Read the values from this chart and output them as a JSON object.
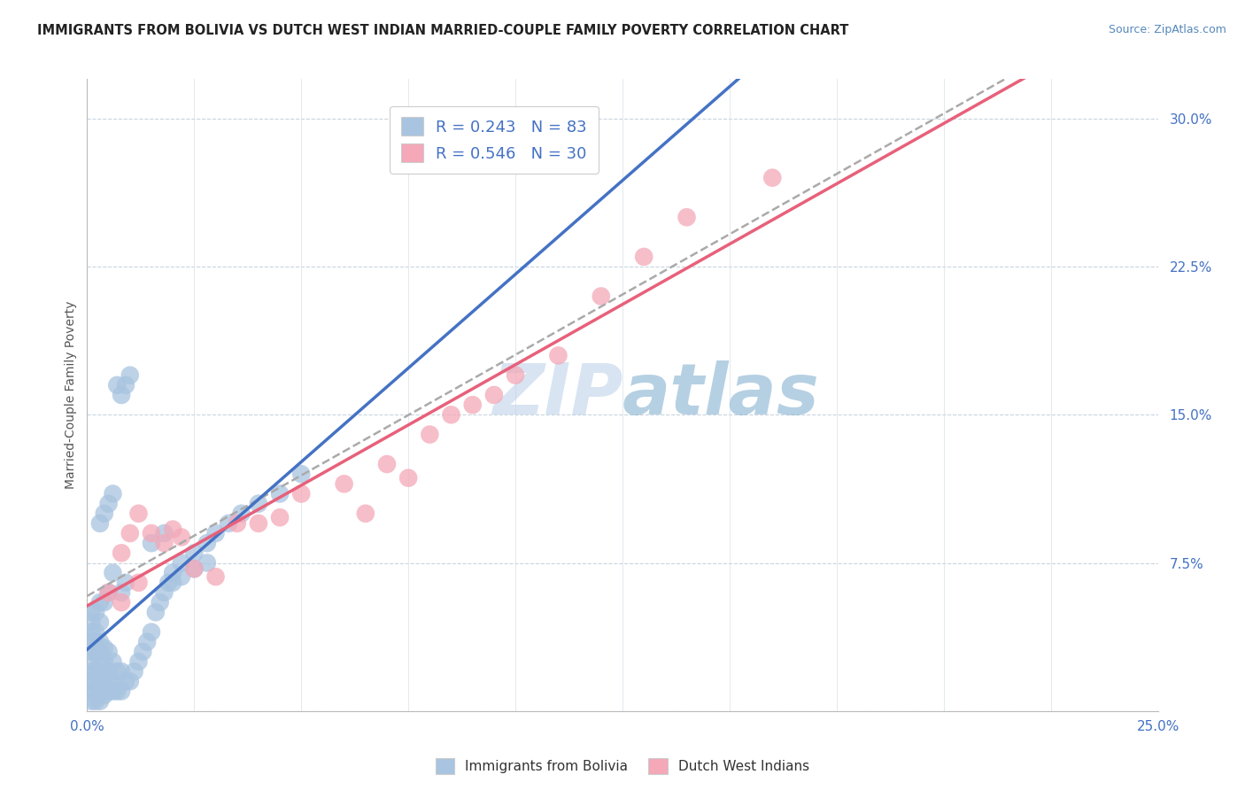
{
  "title": "IMMIGRANTS FROM BOLIVIA VS DUTCH WEST INDIAN MARRIED-COUPLE FAMILY POVERTY CORRELATION CHART",
  "source": "Source: ZipAtlas.com",
  "ylabel": "Married-Couple Family Poverty",
  "xlim": [
    0.0,
    0.25
  ],
  "ylim": [
    0.0,
    0.32
  ],
  "xticks": [
    0.0,
    0.025,
    0.05,
    0.075,
    0.1,
    0.125,
    0.15,
    0.175,
    0.2,
    0.225,
    0.25
  ],
  "ytick_positions": [
    0.0,
    0.075,
    0.15,
    0.225,
    0.3
  ],
  "yticklabels": [
    "",
    "7.5%",
    "15.0%",
    "22.5%",
    "30.0%"
  ],
  "bolivia_R": 0.243,
  "bolivia_N": 83,
  "dutch_R": 0.546,
  "dutch_N": 30,
  "bolivia_color": "#a8c4e0",
  "dutch_color": "#f4a8b8",
  "bolivia_line_color": "#4472c4",
  "dutch_line_color": "#e8607a",
  "watermark": "ZIPatlas",
  "watermark_color_zip": "#b8cfe8",
  "watermark_color_atlas": "#7aabcc",
  "bolivia_x": [
    0.001,
    0.001,
    0.001,
    0.001,
    0.001,
    0.001,
    0.001,
    0.001,
    0.001,
    0.001,
    0.002,
    0.002,
    0.002,
    0.002,
    0.002,
    0.002,
    0.002,
    0.002,
    0.003,
    0.003,
    0.003,
    0.003,
    0.003,
    0.003,
    0.003,
    0.003,
    0.003,
    0.004,
    0.004,
    0.004,
    0.004,
    0.004,
    0.004,
    0.005,
    0.005,
    0.005,
    0.005,
    0.005,
    0.006,
    0.006,
    0.006,
    0.006,
    0.007,
    0.007,
    0.007,
    0.008,
    0.008,
    0.008,
    0.009,
    0.009,
    0.01,
    0.01,
    0.011,
    0.012,
    0.013,
    0.014,
    0.015,
    0.016,
    0.017,
    0.018,
    0.019,
    0.02,
    0.022,
    0.025,
    0.028,
    0.03,
    0.033,
    0.036,
    0.04,
    0.045,
    0.05,
    0.003,
    0.004,
    0.005,
    0.006,
    0.02,
    0.022,
    0.025,
    0.028,
    0.015,
    0.018,
    0.008,
    0.009
  ],
  "bolivia_y": [
    0.005,
    0.01,
    0.015,
    0.02,
    0.025,
    0.03,
    0.035,
    0.04,
    0.045,
    0.05,
    0.005,
    0.01,
    0.015,
    0.02,
    0.03,
    0.035,
    0.04,
    0.05,
    0.005,
    0.01,
    0.015,
    0.02,
    0.025,
    0.03,
    0.035,
    0.045,
    0.055,
    0.008,
    0.012,
    0.018,
    0.025,
    0.032,
    0.055,
    0.01,
    0.015,
    0.02,
    0.03,
    0.06,
    0.01,
    0.015,
    0.025,
    0.07,
    0.01,
    0.02,
    0.165,
    0.01,
    0.02,
    0.16,
    0.015,
    0.165,
    0.015,
    0.17,
    0.02,
    0.025,
    0.03,
    0.035,
    0.04,
    0.05,
    0.055,
    0.06,
    0.065,
    0.07,
    0.075,
    0.08,
    0.085,
    0.09,
    0.095,
    0.1,
    0.105,
    0.11,
    0.12,
    0.095,
    0.1,
    0.105,
    0.11,
    0.065,
    0.068,
    0.072,
    0.075,
    0.085,
    0.09,
    0.06,
    0.065
  ],
  "dutch_x": [
    0.005,
    0.008,
    0.01,
    0.012,
    0.015,
    0.018,
    0.02,
    0.022,
    0.025,
    0.03,
    0.035,
    0.04,
    0.045,
    0.05,
    0.06,
    0.065,
    0.07,
    0.075,
    0.08,
    0.085,
    0.09,
    0.095,
    0.1,
    0.11,
    0.12,
    0.13,
    0.14,
    0.008,
    0.012,
    0.16
  ],
  "dutch_y": [
    0.06,
    0.08,
    0.09,
    0.1,
    0.09,
    0.085,
    0.092,
    0.088,
    0.072,
    0.068,
    0.095,
    0.095,
    0.098,
    0.11,
    0.115,
    0.1,
    0.125,
    0.118,
    0.14,
    0.15,
    0.155,
    0.16,
    0.17,
    0.18,
    0.21,
    0.23,
    0.25,
    0.055,
    0.065,
    0.27
  ]
}
